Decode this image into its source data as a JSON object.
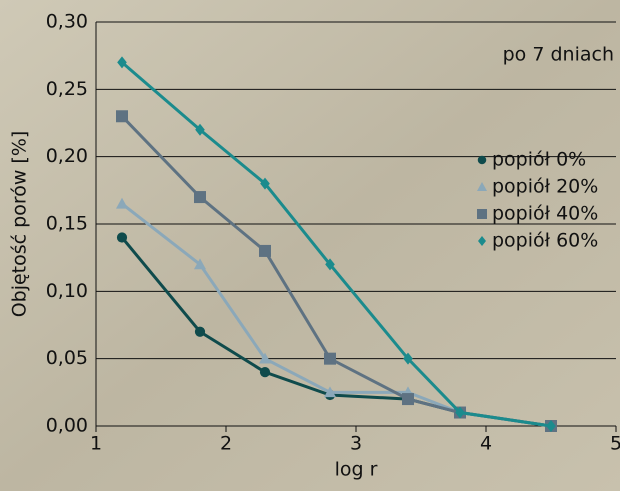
{
  "chart_data": {
    "type": "line",
    "annotation": "po 7 dniach",
    "x_label": "log r",
    "y_label": "Objętość porów [%]",
    "x": [
      1.2,
      1.8,
      2.3,
      2.8,
      3.4,
      3.8,
      4.5
    ],
    "series": [
      {
        "name": "popiół 0%",
        "color": "#0f4b4c",
        "marker": "circle",
        "values": [
          0.14,
          0.07,
          0.04,
          0.023,
          0.02,
          0.01,
          0.0
        ]
      },
      {
        "name": "popiół 20%",
        "color": "#8ba8b9",
        "marker": "triangle",
        "values": [
          0.165,
          0.12,
          0.05,
          0.025,
          0.025,
          0.01,
          0.0
        ]
      },
      {
        "name": "popiół 40%",
        "color": "#5e7282",
        "marker": "square",
        "values": [
          0.23,
          0.17,
          0.13,
          0.05,
          0.02,
          0.01,
          0.0
        ]
      },
      {
        "name": "popiół 60%",
        "color": "#1b8b8d",
        "marker": "diamond",
        "values": [
          0.27,
          0.22,
          0.18,
          0.12,
          0.05,
          0.01,
          0.0
        ]
      }
    ],
    "xlim": [
      1,
      5
    ],
    "xticks": [
      1,
      2,
      3,
      4,
      5
    ],
    "ylim": [
      0,
      0.3
    ],
    "yticks": [
      {
        "value": 0,
        "label": "0,00"
      },
      {
        "value": 0.05,
        "label": "0,05"
      },
      {
        "value": 0.1,
        "label": "0,10"
      },
      {
        "value": 0.15,
        "label": "0,15"
      },
      {
        "value": 0.2,
        "label": "0,20"
      },
      {
        "value": 0.25,
        "label": "0,25"
      },
      {
        "value": 0.3,
        "label": "0,30"
      }
    ],
    "grid": true
  }
}
